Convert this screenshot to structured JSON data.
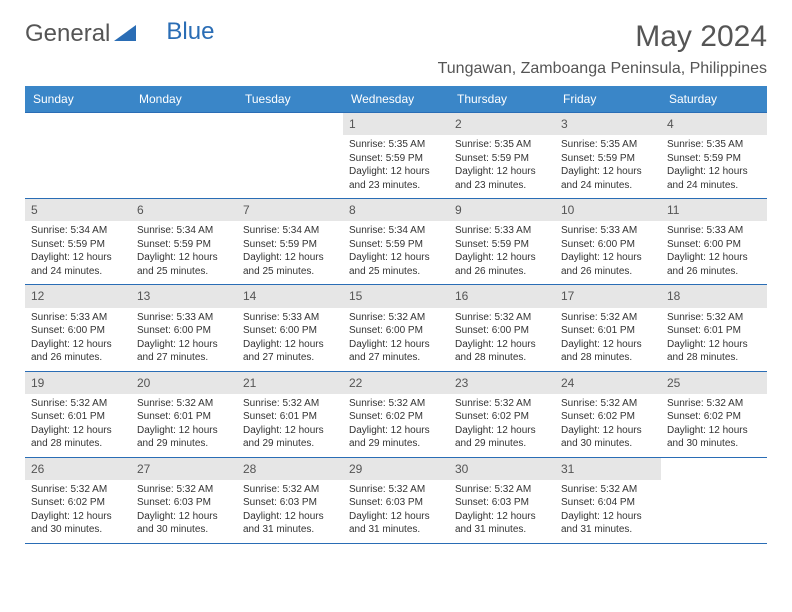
{
  "logo": {
    "text1": "General",
    "text2": "Blue"
  },
  "title": "May 2024",
  "location": "Tungawan, Zamboanga Peninsula, Philippines",
  "colors": {
    "header_bg": "#3a86c8",
    "header_text": "#ffffff",
    "daynum_bg": "#e6e6e6",
    "border": "#2a6db5",
    "text": "#333333",
    "title_text": "#555555"
  },
  "day_names": [
    "Sunday",
    "Monday",
    "Tuesday",
    "Wednesday",
    "Thursday",
    "Friday",
    "Saturday"
  ],
  "weeks": [
    [
      {
        "n": "",
        "s": ""
      },
      {
        "n": "",
        "s": ""
      },
      {
        "n": "",
        "s": ""
      },
      {
        "n": "1",
        "sr": "5:35 AM",
        "ss": "5:59 PM",
        "dl": "12 hours and 23 minutes."
      },
      {
        "n": "2",
        "sr": "5:35 AM",
        "ss": "5:59 PM",
        "dl": "12 hours and 23 minutes."
      },
      {
        "n": "3",
        "sr": "5:35 AM",
        "ss": "5:59 PM",
        "dl": "12 hours and 24 minutes."
      },
      {
        "n": "4",
        "sr": "5:35 AM",
        "ss": "5:59 PM",
        "dl": "12 hours and 24 minutes."
      }
    ],
    [
      {
        "n": "5",
        "sr": "5:34 AM",
        "ss": "5:59 PM",
        "dl": "12 hours and 24 minutes."
      },
      {
        "n": "6",
        "sr": "5:34 AM",
        "ss": "5:59 PM",
        "dl": "12 hours and 25 minutes."
      },
      {
        "n": "7",
        "sr": "5:34 AM",
        "ss": "5:59 PM",
        "dl": "12 hours and 25 minutes."
      },
      {
        "n": "8",
        "sr": "5:34 AM",
        "ss": "5:59 PM",
        "dl": "12 hours and 25 minutes."
      },
      {
        "n": "9",
        "sr": "5:33 AM",
        "ss": "5:59 PM",
        "dl": "12 hours and 26 minutes."
      },
      {
        "n": "10",
        "sr": "5:33 AM",
        "ss": "6:00 PM",
        "dl": "12 hours and 26 minutes."
      },
      {
        "n": "11",
        "sr": "5:33 AM",
        "ss": "6:00 PM",
        "dl": "12 hours and 26 minutes."
      }
    ],
    [
      {
        "n": "12",
        "sr": "5:33 AM",
        "ss": "6:00 PM",
        "dl": "12 hours and 26 minutes."
      },
      {
        "n": "13",
        "sr": "5:33 AM",
        "ss": "6:00 PM",
        "dl": "12 hours and 27 minutes."
      },
      {
        "n": "14",
        "sr": "5:33 AM",
        "ss": "6:00 PM",
        "dl": "12 hours and 27 minutes."
      },
      {
        "n": "15",
        "sr": "5:32 AM",
        "ss": "6:00 PM",
        "dl": "12 hours and 27 minutes."
      },
      {
        "n": "16",
        "sr": "5:32 AM",
        "ss": "6:00 PM",
        "dl": "12 hours and 28 minutes."
      },
      {
        "n": "17",
        "sr": "5:32 AM",
        "ss": "6:01 PM",
        "dl": "12 hours and 28 minutes."
      },
      {
        "n": "18",
        "sr": "5:32 AM",
        "ss": "6:01 PM",
        "dl": "12 hours and 28 minutes."
      }
    ],
    [
      {
        "n": "19",
        "sr": "5:32 AM",
        "ss": "6:01 PM",
        "dl": "12 hours and 28 minutes."
      },
      {
        "n": "20",
        "sr": "5:32 AM",
        "ss": "6:01 PM",
        "dl": "12 hours and 29 minutes."
      },
      {
        "n": "21",
        "sr": "5:32 AM",
        "ss": "6:01 PM",
        "dl": "12 hours and 29 minutes."
      },
      {
        "n": "22",
        "sr": "5:32 AM",
        "ss": "6:02 PM",
        "dl": "12 hours and 29 minutes."
      },
      {
        "n": "23",
        "sr": "5:32 AM",
        "ss": "6:02 PM",
        "dl": "12 hours and 29 minutes."
      },
      {
        "n": "24",
        "sr": "5:32 AM",
        "ss": "6:02 PM",
        "dl": "12 hours and 30 minutes."
      },
      {
        "n": "25",
        "sr": "5:32 AM",
        "ss": "6:02 PM",
        "dl": "12 hours and 30 minutes."
      }
    ],
    [
      {
        "n": "26",
        "sr": "5:32 AM",
        "ss": "6:02 PM",
        "dl": "12 hours and 30 minutes."
      },
      {
        "n": "27",
        "sr": "5:32 AM",
        "ss": "6:03 PM",
        "dl": "12 hours and 30 minutes."
      },
      {
        "n": "28",
        "sr": "5:32 AM",
        "ss": "6:03 PM",
        "dl": "12 hours and 31 minutes."
      },
      {
        "n": "29",
        "sr": "5:32 AM",
        "ss": "6:03 PM",
        "dl": "12 hours and 31 minutes."
      },
      {
        "n": "30",
        "sr": "5:32 AM",
        "ss": "6:03 PM",
        "dl": "12 hours and 31 minutes."
      },
      {
        "n": "31",
        "sr": "5:32 AM",
        "ss": "6:04 PM",
        "dl": "12 hours and 31 minutes."
      },
      {
        "n": "",
        "s": ""
      }
    ]
  ],
  "labels": {
    "sunrise": "Sunrise:",
    "sunset": "Sunset:",
    "daylight": "Daylight:"
  }
}
